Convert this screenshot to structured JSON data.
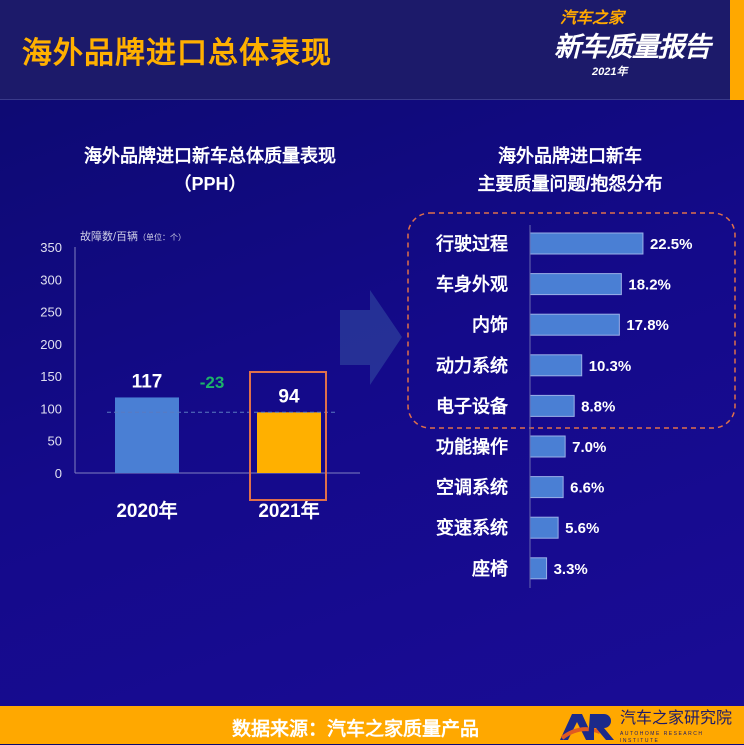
{
  "header": {
    "title": "海外品牌进口总体表现",
    "logo_text": [
      "汽车之家",
      "新车质量报告",
      "2021年"
    ]
  },
  "colors": {
    "accent": "#ffa800",
    "bar_2020": "#4a7fd4",
    "bar_2021": "#ffb000",
    "diff": "#1db36a",
    "hbar": "#4a7fd4",
    "highlight": "#e0704a"
  },
  "chart_data": [
    {
      "type": "bar",
      "title": "海外品牌进口新车总体质量表现",
      "subtitle": "（PPH）",
      "ylabel": "故障数/百辆",
      "yunit": "（单位：个）",
      "ylim": [
        0,
        350
      ],
      "yticks": [
        0,
        50,
        100,
        150,
        200,
        250,
        300,
        350
      ],
      "categories": [
        "2020年",
        "2021年"
      ],
      "values": [
        117,
        94
      ],
      "data_labels": [
        "117",
        "94"
      ],
      "annotation": "-23",
      "highlight": "2021年"
    },
    {
      "type": "bar",
      "orientation": "horizontal",
      "title": "海外品牌进口新车",
      "subtitle": "主要质量问题/抱怨分布",
      "categories": [
        "行驶过程",
        "车身外观",
        "内饰",
        "动力系统",
        "电子设备",
        "功能操作",
        "空调系统",
        "变速系统",
        "座椅"
      ],
      "values": [
        22.5,
        18.2,
        17.8,
        10.3,
        8.8,
        7.0,
        6.6,
        5.6,
        3.3
      ],
      "data_labels": [
        "22.5%",
        "18.2%",
        "17.8%",
        "10.3%",
        "8.8%",
        "7.0%",
        "6.6%",
        "5.6%",
        "3.3%"
      ],
      "highlight_top": 5
    }
  ],
  "footer": {
    "source": "数据来源：汽车之家质量产品",
    "org": "汽车之家研究院",
    "org_sub": "AUTOHOME RESEARCH INSTITUTE"
  }
}
